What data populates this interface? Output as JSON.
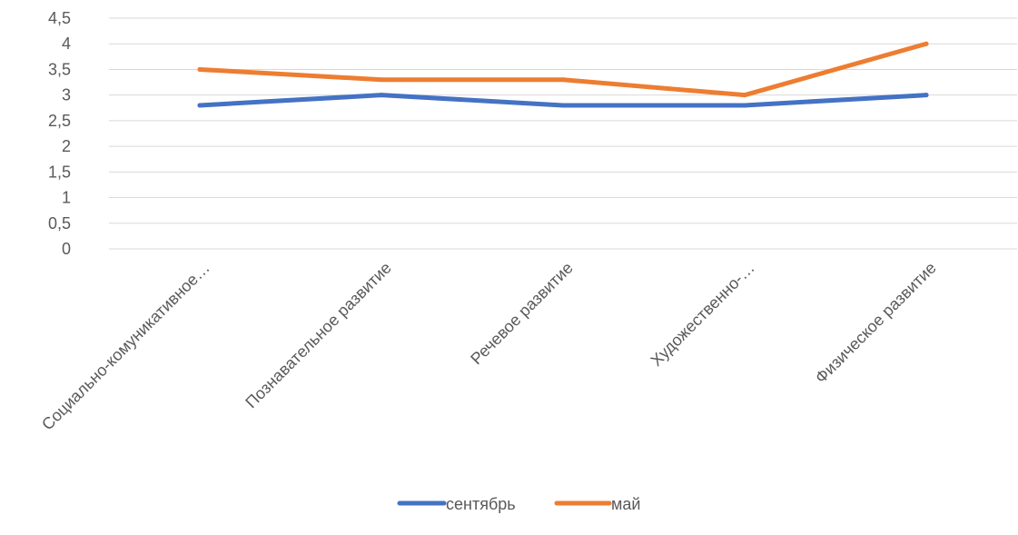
{
  "chart_data": {
    "type": "line",
    "categories": [
      "Социально-комуникативное…",
      "Познавательное развитие",
      "Речевое развитие",
      "Художественно-…",
      "Физическое развитие"
    ],
    "series": [
      {
        "name": "сентябрь",
        "values": [
          2.8,
          3.0,
          2.8,
          2.8,
          3.0
        ],
        "color": "#4472C4"
      },
      {
        "name": "май",
        "values": [
          3.5,
          3.3,
          3.3,
          3.0,
          4.0
        ],
        "color": "#ED7D31"
      }
    ],
    "yticks": [
      "0",
      "0,5",
      "1",
      "1,5",
      "2",
      "2,5",
      "3",
      "3,5",
      "4",
      "4,5"
    ],
    "ylim": [
      0,
      4.5
    ],
    "grid": true,
    "gridColor": "#d9d9d9",
    "legend": "bottom"
  }
}
